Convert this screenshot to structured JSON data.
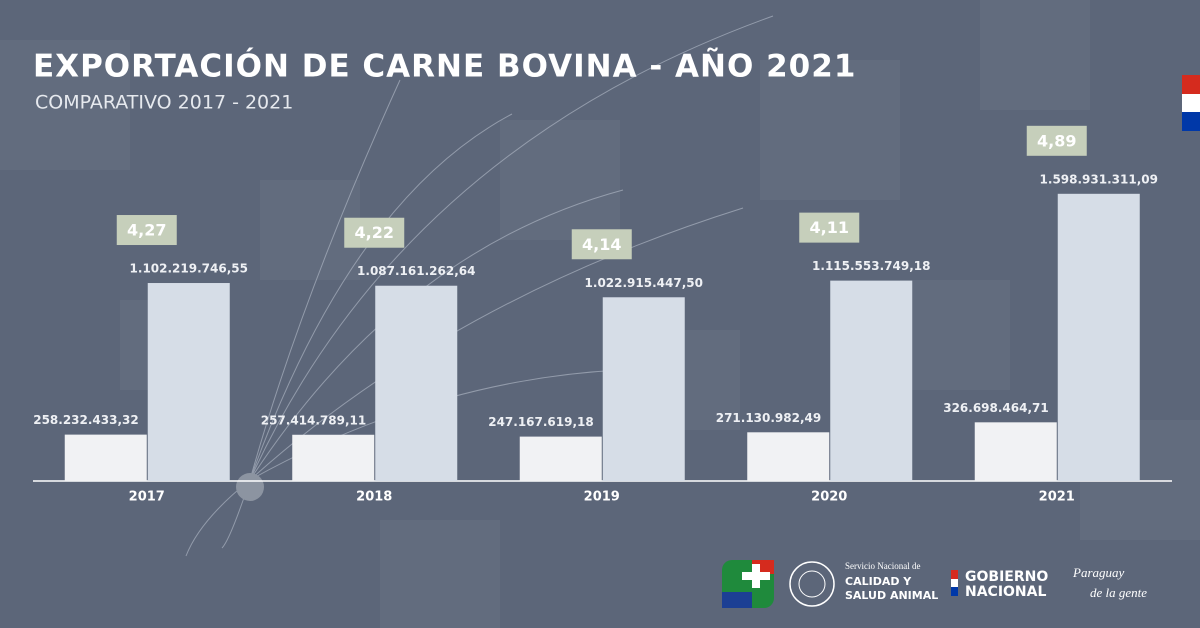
{
  "chart_data": {
    "type": "bar",
    "title": "EXPORTACIÓN DE CARNE BOVINA - AÑO 2021",
    "subtitle": "COMPARATIVO 2017 - 2021",
    "categories": [
      "2017",
      "2018",
      "2019",
      "2020",
      "2021"
    ],
    "series": [
      {
        "color": "#f1f2f4",
        "values": [
          258232433.32,
          257414789.11,
          247167619.18,
          271130982.49,
          326698464.71
        ],
        "value_labels": [
          "258.232.433,32",
          "257.414.789,11",
          "247.167.619,18",
          "271.130.982,49",
          "326.698.464,71"
        ]
      },
      {
        "color": "#d6dde7",
        "values": [
          1102219746.55,
          1087161262.64,
          1022915447.5,
          1115553749.18,
          1598931311.09
        ],
        "value_labels": [
          "1.102.219.746,55",
          "1.087.161.262,64",
          "1.022.915.447,50",
          "1.115.553.749,18",
          "1.598.931.311,09"
        ]
      }
    ],
    "price": {
      "color": "#c6cfbb",
      "values": [
        4.27,
        4.22,
        4.14,
        4.11,
        4.89
      ],
      "value_labels": [
        "4,27",
        "4,22",
        "4,14",
        "4,11",
        "4,89"
      ]
    },
    "ylim": [
      0,
      2600000000
    ]
  },
  "footer": {
    "agency": [
      "Servicio Nacional de",
      "CALIDAD Y",
      "SALUD ANIMAL"
    ],
    "government": [
      "GOBIERNO",
      "NACIONAL"
    ],
    "slogan": [
      "Paraguay",
      "de la gente"
    ]
  }
}
